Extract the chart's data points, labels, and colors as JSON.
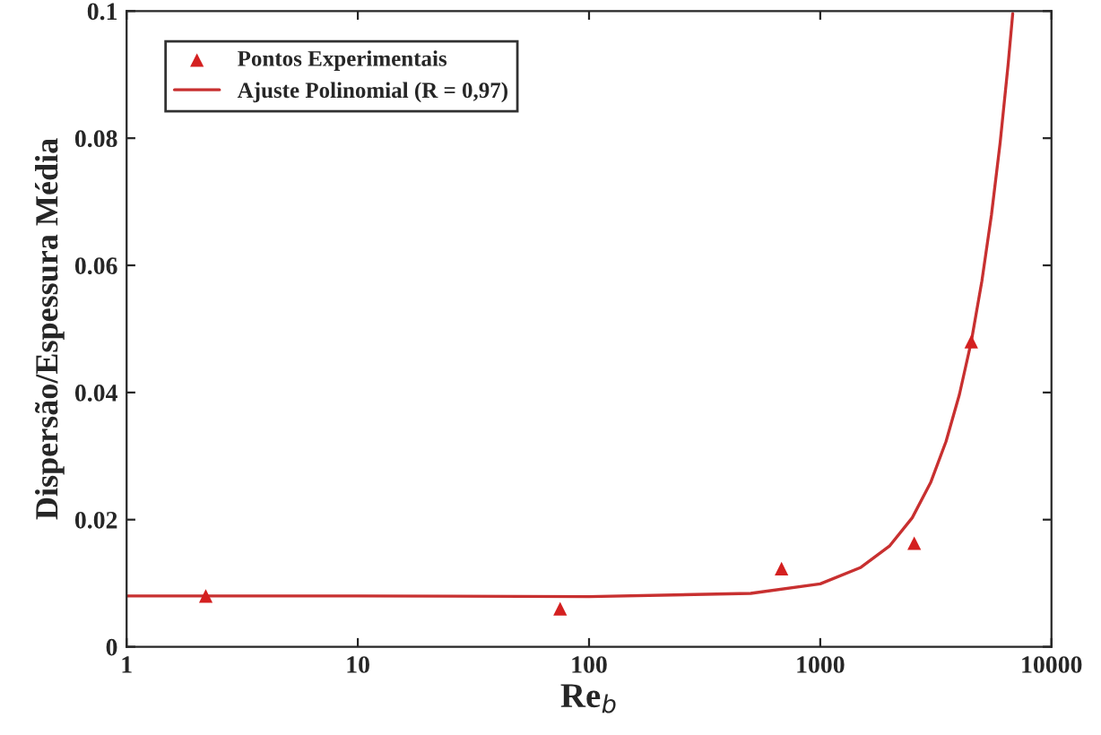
{
  "chart_data": {
    "type": "scatter",
    "xlabel": "Re$_{b}$",
    "ylabel": "Dispersão/Espessura Média",
    "log": "x",
    "xlim": [
      1,
      10000
    ],
    "xticks": [
      1,
      10,
      100,
      1000,
      10000
    ],
    "ylim": [
      0,
      0.1
    ],
    "yticks": [
      0,
      0.02,
      0.04,
      0.06,
      0.08,
      0.1
    ],
    "grid": false,
    "legend": "top left",
    "series": [
      {
        "name": "Pontos Experimentais",
        "marker": "triangle",
        "color": "#d42020",
        "x": [
          2.2,
          75,
          680,
          2550,
          4500
        ],
        "values": [
          0.008,
          0.006,
          0.0123,
          0.0163,
          0.048
        ]
      },
      {
        "name": "Ajuste Polinomial (R = 0,97)",
        "type": "line",
        "marker": "none",
        "line_style": "solid",
        "color": "#c83030",
        "x": [
          1,
          10,
          100,
          500,
          1000,
          1500,
          2000,
          2500,
          3000,
          3500,
          4000,
          4500,
          5000,
          5500,
          6000,
          6500,
          6800
        ],
        "values": [
          0.008,
          0.008,
          0.0079,
          0.0084,
          0.0099,
          0.0125,
          0.0159,
          0.0203,
          0.0258,
          0.0323,
          0.0397,
          0.048,
          0.0575,
          0.0679,
          0.0793,
          0.0917,
          0.0996
        ]
      }
    ]
  }
}
